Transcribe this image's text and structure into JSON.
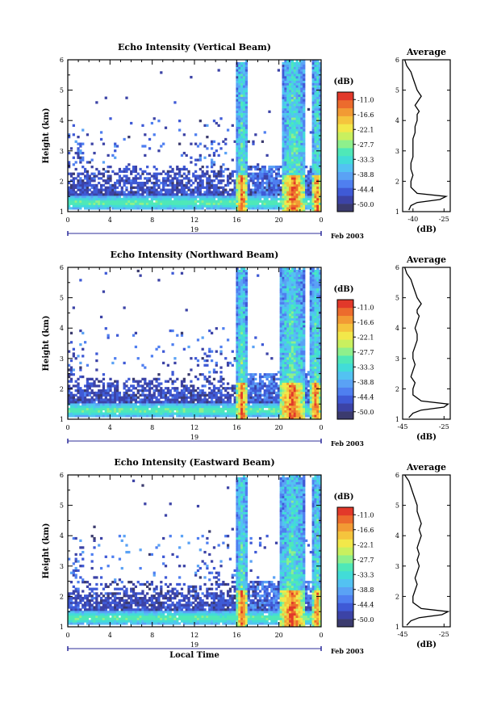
{
  "colorbar_colors": [
    "#3b3b6e",
    "#3c43a6",
    "#3f5ad6",
    "#4f7ff0",
    "#5aa2f5",
    "#53c2f2",
    "#42dcd8",
    "#4fe8b8",
    "#8ef08c",
    "#c9f05f",
    "#f2e84a",
    "#f5c43d",
    "#f29a34",
    "#ec6b2d",
    "#e2392a"
  ],
  "panels": [
    {
      "title": "Echo Intensity (Vertical Beam)",
      "ylabel": "Height (km)",
      "y_ticks": [
        "1",
        "2",
        "3",
        "4",
        "5",
        "6"
      ],
      "x_ticks": [
        "0",
        "4",
        "8",
        "12",
        "16",
        "20",
        "0"
      ],
      "date_label": "19",
      "date_suffix": "Feb 2003",
      "xlabel": "",
      "cb_unit": "(dB)",
      "cb_ticks": [
        "-11.0",
        "-16.6",
        "-22.1",
        "-27.7",
        "-33.3",
        "-38.8",
        "-44.4",
        "-50.0"
      ],
      "avg_title": "Average",
      "avg_x_ticks": [
        "-40",
        "-25"
      ],
      "avg_xlabel": "(dB)"
    },
    {
      "title": "Echo Intensity (Northward Beam)",
      "ylabel": "Height (km)",
      "y_ticks": [
        "1",
        "2",
        "3",
        "4",
        "5",
        "6"
      ],
      "x_ticks": [
        "0",
        "4",
        "8",
        "12",
        "16",
        "20",
        "0"
      ],
      "date_label": "19",
      "date_suffix": "Feb 2003",
      "xlabel": "",
      "cb_unit": "(dB)",
      "cb_ticks": [
        "-11.0",
        "-16.6",
        "-22.1",
        "-27.7",
        "-33.3",
        "-38.8",
        "-44.4",
        "-50.0"
      ],
      "avg_title": "Average",
      "avg_x_ticks": [
        "-45",
        "-25"
      ],
      "avg_xlabel": "(dB)"
    },
    {
      "title": "Echo Intensity (Eastward Beam)",
      "ylabel": "Height (km)",
      "y_ticks": [
        "1",
        "2",
        "3",
        "4",
        "5",
        "6"
      ],
      "x_ticks": [
        "0",
        "4",
        "8",
        "12",
        "16",
        "20",
        "0"
      ],
      "date_label": "19",
      "date_suffix": "Feb 2003",
      "xlabel": "Local Time",
      "cb_unit": "(dB)",
      "cb_ticks": [
        "-11.0",
        "-16.6",
        "-22.1",
        "-27.7",
        "-33.3",
        "-38.8",
        "-44.4",
        "-50.0"
      ],
      "avg_title": "Average",
      "avg_x_ticks": [
        "-45",
        "-25"
      ],
      "avg_xlabel": "(dB)"
    }
  ],
  "chart_data": [
    {
      "type": "heatmap",
      "title": "Echo Intensity (Vertical Beam)",
      "xlabel": "",
      "ylabel": "Height (km)",
      "xlim": [
        0,
        24
      ],
      "ylim": [
        1,
        6
      ],
      "x_tick_labels": [
        "0",
        "4",
        "8",
        "12",
        "16",
        "20",
        "0"
      ],
      "colorbar": {
        "label": "(dB)",
        "range": [
          -50.0,
          -11.0
        ],
        "ticks": [
          -11.0,
          -16.6,
          -22.1,
          -27.7,
          -33.3,
          -38.8,
          -44.4,
          -50.0
        ]
      },
      "features": {
        "surface_layer_km": [
          1.1,
          1.5
        ],
        "boundary_layer_top_km": 2.5,
        "convective_bursts_local_time_h": [
          [
            16.0,
            17.0
          ],
          [
            20.3,
            22.5
          ],
          [
            23.2,
            24.0
          ]
        ]
      }
    },
    {
      "type": "line",
      "title": "Average",
      "xlabel": "(dB)",
      "ylabel": "Height (km)",
      "xlim": [
        -45,
        -22
      ],
      "ylim": [
        1,
        6
      ],
      "x": [
        -42,
        -41,
        -38,
        -27,
        -24,
        -38,
        -41,
        -41,
        -40,
        -41,
        -41,
        -40,
        -40,
        -40,
        -40,
        -39,
        -39,
        -38,
        -38,
        -37,
        -38,
        -39,
        -38,
        -37,
        -36,
        -37,
        -38,
        -39,
        -40,
        -41,
        -43,
        -44
      ],
      "y": [
        1.05,
        1.2,
        1.3,
        1.4,
        1.5,
        1.6,
        1.8,
        2.0,
        2.2,
        2.4,
        2.6,
        2.8,
        3.0,
        3.2,
        3.4,
        3.6,
        3.8,
        4.0,
        4.2,
        4.3,
        4.4,
        4.5,
        4.6,
        4.7,
        4.8,
        4.9,
        5.0,
        5.2,
        5.4,
        5.6,
        5.8,
        6.0
      ]
    },
    {
      "type": "heatmap",
      "title": "Echo Intensity (Northward Beam)",
      "xlabel": "",
      "ylabel": "Height (km)",
      "xlim": [
        0,
        24
      ],
      "ylim": [
        1,
        6
      ],
      "x_tick_labels": [
        "0",
        "4",
        "8",
        "12",
        "16",
        "20",
        "0"
      ],
      "colorbar": {
        "label": "(dB)",
        "range": [
          -50.0,
          -11.0
        ],
        "ticks": [
          -11.0,
          -16.6,
          -22.1,
          -27.7,
          -33.3,
          -38.8,
          -44.4,
          -50.0
        ]
      },
      "features": {
        "surface_layer_km": [
          1.1,
          1.5
        ],
        "boundary_layer_top_km": 2.4,
        "convective_bursts_local_time_h": [
          [
            16.0,
            17.0
          ],
          [
            20.0,
            22.5
          ],
          [
            23.0,
            24.0
          ]
        ]
      }
    },
    {
      "type": "line",
      "title": "Average",
      "xlabel": "(dB)",
      "ylabel": "Height (km)",
      "xlim": [
        -45,
        -22
      ],
      "ylim": [
        1,
        6
      ],
      "x": [
        -42,
        -40,
        -36,
        -25,
        -23,
        -36,
        -40,
        -40,
        -39,
        -41,
        -40,
        -39,
        -40,
        -40,
        -39,
        -38,
        -38,
        -39,
        -38,
        -37,
        -38,
        -38,
        -37,
        -36,
        -37,
        -38,
        -39,
        -40,
        -41,
        -43,
        -44
      ],
      "y": [
        1.05,
        1.2,
        1.3,
        1.4,
        1.5,
        1.6,
        1.8,
        2.0,
        2.2,
        2.4,
        2.6,
        2.8,
        3.0,
        3.2,
        3.4,
        3.6,
        3.8,
        4.0,
        4.2,
        4.4,
        4.5,
        4.6,
        4.7,
        4.8,
        4.9,
        5.0,
        5.2,
        5.4,
        5.6,
        5.8,
        6.0
      ]
    },
    {
      "type": "heatmap",
      "title": "Echo Intensity (Eastward Beam)",
      "xlabel": "Local Time",
      "ylabel": "Height (km)",
      "xlim": [
        0,
        24
      ],
      "ylim": [
        1,
        6
      ],
      "x_tick_labels": [
        "0",
        "4",
        "8",
        "12",
        "16",
        "20",
        "0"
      ],
      "colorbar": {
        "label": "(dB)",
        "range": [
          -50.0,
          -11.0
        ],
        "ticks": [
          -11.0,
          -16.6,
          -22.1,
          -27.7,
          -33.3,
          -38.8,
          -44.4,
          -50.0
        ]
      },
      "features": {
        "surface_layer_km": [
          1.1,
          1.5
        ],
        "boundary_layer_top_km": 2.5,
        "convective_bursts_local_time_h": [
          [
            16.0,
            17.0
          ],
          [
            20.0,
            22.5
          ],
          [
            23.2,
            24.0
          ]
        ]
      }
    },
    {
      "type": "line",
      "title": "Average",
      "xlabel": "(dB)",
      "ylabel": "Height (km)",
      "xlim": [
        -45,
        -22
      ],
      "ylim": [
        1,
        6
      ],
      "x": [
        -43,
        -41,
        -37,
        -26,
        -23,
        -36,
        -40,
        -40,
        -39,
        -38,
        -39,
        -38,
        -37,
        -38,
        -37,
        -38,
        -37,
        -36,
        -37,
        -36,
        -37,
        -38,
        -38,
        -39,
        -40,
        -41,
        -42,
        -43,
        -44
      ],
      "y": [
        1.05,
        1.2,
        1.3,
        1.4,
        1.5,
        1.6,
        1.8,
        2.0,
        2.2,
        2.4,
        2.6,
        2.8,
        3.0,
        3.2,
        3.4,
        3.6,
        3.8,
        4.0,
        4.2,
        4.4,
        4.6,
        4.8,
        5.0,
        5.2,
        5.4,
        5.6,
        5.8,
        5.9,
        6.0
      ]
    }
  ]
}
